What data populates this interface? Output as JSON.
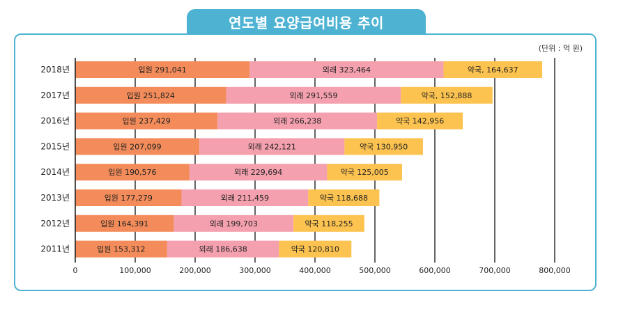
{
  "chart_data": {
    "type": "bar",
    "orientation": "horizontal",
    "stacked": true,
    "title": "연도별 요양급여비용 추이",
    "unit": "(단위 : 억 원)",
    "categories": [
      "2018년",
      "2017년",
      "2016년",
      "2015년",
      "2014년",
      "2013년",
      "2012년",
      "2011년"
    ],
    "series": [
      {
        "name": "입원",
        "color": "#f38c5a",
        "values": [
          291041,
          251824,
          237429,
          207099,
          190576,
          177279,
          164391,
          153312
        ],
        "labels": [
          "입원 291,041",
          "입원 251,824",
          "입원 237,429",
          "입원 207,099",
          "입원 190,576",
          "입원 177,279",
          "입원 164,391",
          "입원 153,312"
        ]
      },
      {
        "name": "외래",
        "color": "#f4a0ae",
        "values": [
          323464,
          291559,
          266238,
          242121,
          229694,
          211459,
          199703,
          186638
        ],
        "labels": [
          "외래 323,464",
          "외래 291,559",
          "외래 266,238",
          "외래 242,121",
          "외래 229,694",
          "외래 211,459",
          "외래 199,703",
          "외래 186,638"
        ]
      },
      {
        "name": "약국",
        "color": "#fdc350",
        "values": [
          164637,
          152888,
          142956,
          130950,
          125005,
          118688,
          118255,
          120810
        ],
        "labels": [
          "약국, 164,637",
          "약국, 152,888",
          "약국 142,956",
          "약국 130,950",
          "약국 125,005",
          "약국 118,688",
          "약국 118,255",
          "약국 120,810"
        ]
      }
    ],
    "xlim": [
      0,
      800000
    ],
    "xticks": [
      0,
      100000,
      200000,
      300000,
      400000,
      500000,
      600000,
      700000,
      800000
    ],
    "xtick_labels": [
      "0",
      "100,000",
      "200,000",
      "300,000",
      "400,000",
      "500,000",
      "600,000",
      "700,000",
      "800,000"
    ],
    "grid": true,
    "gridline_color": "#222222"
  }
}
